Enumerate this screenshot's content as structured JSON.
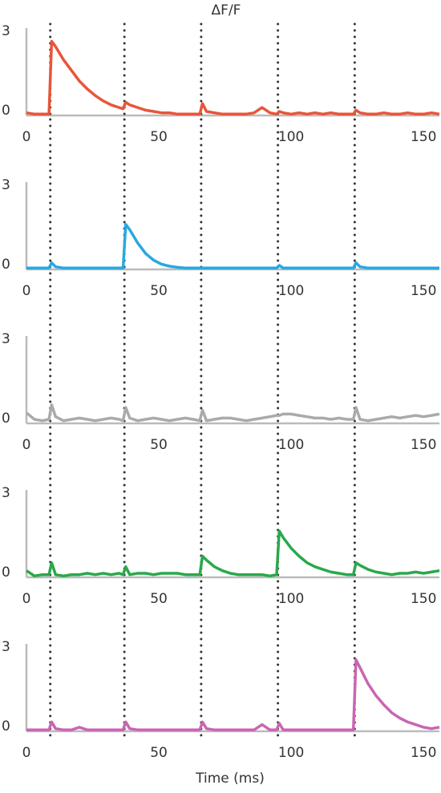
{
  "chart_data": [
    {
      "type": "line",
      "title": "ΔF/F",
      "x": [
        0,
        3,
        6,
        8.5,
        9.5,
        11,
        14,
        17,
        20,
        23,
        26,
        29,
        32,
        35,
        36.5,
        37.5,
        39,
        42,
        45,
        48,
        51,
        54,
        57,
        60,
        63,
        65.5,
        66.5,
        68,
        71,
        74,
        77,
        80,
        83,
        86,
        89,
        92,
        94.5,
        95.5,
        97,
        100,
        103,
        106,
        109,
        112,
        115,
        118,
        121,
        123.5,
        124.5,
        126,
        129,
        132,
        135,
        138,
        141,
        144,
        147,
        150,
        153,
        156
      ],
      "series": [
        {
          "color": "#e8553a",
          "values": [
            0.1,
            0.05,
            0.05,
            0.05,
            2.8,
            2.6,
            2.1,
            1.7,
            1.3,
            1.0,
            0.75,
            0.55,
            0.4,
            0.3,
            0.25,
            0.5,
            0.4,
            0.3,
            0.2,
            0.15,
            0.1,
            0.1,
            0.05,
            0.05,
            0.05,
            0.05,
            0.45,
            0.15,
            0.1,
            0.05,
            0.05,
            0.05,
            0.05,
            0.1,
            0.3,
            0.1,
            0.05,
            0.15,
            0.1,
            0.05,
            0.1,
            0.05,
            0.1,
            0.05,
            0.1,
            0.05,
            0.05,
            0.05,
            0.2,
            0.1,
            0.05,
            0.05,
            0.1,
            0.05,
            0.05,
            0.1,
            0.05,
            0.05,
            0.1,
            0.05
          ]
        }
      ],
      "xlim": [
        0,
        156
      ],
      "xticks": [
        0,
        50,
        100,
        150
      ],
      "ylim": [
        0,
        3.3
      ],
      "yticks": [
        0,
        3
      ],
      "vlines": [
        9,
        37,
        66,
        95,
        124
      ]
    },
    {
      "type": "line",
      "x": [
        0,
        3,
        6,
        8.5,
        9.5,
        11,
        14,
        17,
        20,
        23,
        26,
        29,
        32,
        35,
        36.5,
        37.5,
        39,
        42,
        45,
        48,
        51,
        54,
        57,
        60,
        63,
        65.5,
        66.5,
        68,
        71,
        74,
        77,
        80,
        83,
        86,
        89,
        92,
        94.5,
        95.5,
        97,
        100,
        103,
        106,
        109,
        112,
        115,
        118,
        121,
        123.5,
        124.5,
        126,
        129,
        132,
        135,
        138,
        141,
        144,
        147,
        150,
        153,
        156
      ],
      "series": [
        {
          "color": "#29a8e0",
          "values": [
            0.05,
            0.05,
            0.05,
            0.05,
            0.25,
            0.1,
            0.05,
            0.05,
            0.05,
            0.05,
            0.05,
            0.05,
            0.05,
            0.05,
            0.05,
            1.7,
            1.5,
            1.0,
            0.6,
            0.35,
            0.2,
            0.12,
            0.08,
            0.05,
            0.05,
            0.05,
            0.05,
            0.05,
            0.05,
            0.05,
            0.05,
            0.05,
            0.05,
            0.05,
            0.05,
            0.05,
            0.05,
            0.15,
            0.05,
            0.05,
            0.05,
            0.05,
            0.05,
            0.05,
            0.05,
            0.05,
            0.05,
            0.05,
            0.25,
            0.1,
            0.05,
            0.05,
            0.05,
            0.05,
            0.05,
            0.05,
            0.05,
            0.05,
            0.05,
            0.05
          ]
        }
      ],
      "xlim": [
        0,
        156
      ],
      "xticks": [
        0,
        50,
        100,
        150
      ],
      "ylim": [
        0,
        3.3
      ],
      "yticks": [
        0,
        3
      ],
      "vlines": [
        9,
        37,
        66,
        95,
        124
      ]
    },
    {
      "type": "line",
      "x": [
        0,
        3,
        6,
        8.5,
        9.5,
        11,
        14,
        17,
        20,
        23,
        26,
        29,
        32,
        35,
        36.5,
        37.5,
        39,
        42,
        45,
        48,
        51,
        54,
        57,
        60,
        63,
        65.5,
        66.5,
        68,
        71,
        74,
        77,
        80,
        83,
        86,
        89,
        92,
        94.5,
        95.5,
        97,
        100,
        103,
        106,
        109,
        112,
        115,
        118,
        121,
        123.5,
        124.5,
        126,
        129,
        132,
        135,
        138,
        141,
        144,
        147,
        150,
        153,
        156
      ],
      "series": [
        {
          "color": "#aaaaaa",
          "values": [
            0.4,
            0.15,
            0.1,
            0.15,
            0.7,
            0.25,
            0.1,
            0.15,
            0.2,
            0.15,
            0.1,
            0.15,
            0.2,
            0.15,
            0.1,
            0.6,
            0.2,
            0.1,
            0.15,
            0.2,
            0.15,
            0.1,
            0.15,
            0.2,
            0.15,
            0.1,
            0.5,
            0.1,
            0.15,
            0.2,
            0.2,
            0.15,
            0.1,
            0.15,
            0.2,
            0.25,
            0.3,
            0.3,
            0.35,
            0.35,
            0.3,
            0.25,
            0.2,
            0.2,
            0.15,
            0.2,
            0.15,
            0.15,
            0.6,
            0.15,
            0.1,
            0.15,
            0.2,
            0.25,
            0.2,
            0.25,
            0.3,
            0.25,
            0.3,
            0.35
          ]
        }
      ],
      "xlim": [
        0,
        156
      ],
      "xticks": [
        0,
        50,
        100,
        150
      ],
      "ylim": [
        0,
        3.3
      ],
      "yticks": [
        0,
        3
      ],
      "vlines": [
        9,
        37,
        66,
        95,
        124
      ]
    },
    {
      "type": "line",
      "x": [
        0,
        3,
        6,
        8.5,
        9.5,
        11,
        14,
        17,
        20,
        23,
        26,
        29,
        32,
        35,
        36.5,
        37.5,
        39,
        42,
        45,
        48,
        51,
        54,
        57,
        60,
        63,
        65.5,
        66.5,
        68,
        71,
        74,
        77,
        80,
        83,
        86,
        89,
        92,
        94.5,
        95.5,
        97,
        100,
        103,
        106,
        109,
        112,
        115,
        118,
        121,
        123.5,
        124.5,
        126,
        129,
        132,
        135,
        138,
        141,
        144,
        147,
        150,
        153,
        156
      ],
      "series": [
        {
          "color": "#2aa84a",
          "values": [
            0.25,
            0.05,
            0.1,
            0.1,
            0.55,
            0.1,
            0.05,
            0.1,
            0.1,
            0.15,
            0.1,
            0.15,
            0.1,
            0.15,
            0.1,
            0.4,
            0.1,
            0.15,
            0.15,
            0.1,
            0.15,
            0.15,
            0.15,
            0.1,
            0.1,
            0.1,
            0.8,
            0.65,
            0.4,
            0.25,
            0.15,
            0.1,
            0.1,
            0.1,
            0.1,
            0.05,
            0.1,
            1.75,
            1.5,
            1.1,
            0.8,
            0.55,
            0.4,
            0.3,
            0.2,
            0.15,
            0.1,
            0.1,
            0.55,
            0.45,
            0.3,
            0.2,
            0.15,
            0.1,
            0.15,
            0.15,
            0.2,
            0.15,
            0.2,
            0.25
          ]
        }
      ],
      "xlim": [
        0,
        156
      ],
      "xticks": [
        0,
        50,
        100,
        150
      ],
      "ylim": [
        0,
        3.3
      ],
      "yticks": [
        0,
        3
      ],
      "vlines": [
        9,
        37,
        66,
        95,
        124
      ]
    },
    {
      "type": "line",
      "x_label": "Time (ms)",
      "x": [
        0,
        3,
        6,
        8.5,
        9.5,
        11,
        14,
        17,
        20,
        23,
        26,
        29,
        32,
        35,
        36.5,
        37.5,
        39,
        42,
        45,
        48,
        51,
        54,
        57,
        60,
        63,
        65.5,
        66.5,
        68,
        71,
        74,
        77,
        80,
        83,
        86,
        89,
        92,
        94.5,
        95.5,
        97,
        100,
        103,
        106,
        109,
        112,
        115,
        118,
        121,
        123.5,
        124.5,
        126,
        129,
        132,
        135,
        138,
        141,
        144,
        147,
        150,
        153,
        156
      ],
      "series": [
        {
          "color": "#c966b3",
          "values": [
            0.05,
            0.05,
            0.05,
            0.05,
            0.35,
            0.1,
            0.05,
            0.05,
            0.15,
            0.05,
            0.05,
            0.05,
            0.05,
            0.05,
            0.05,
            0.35,
            0.1,
            0.05,
            0.05,
            0.05,
            0.05,
            0.05,
            0.05,
            0.05,
            0.05,
            0.05,
            0.35,
            0.1,
            0.05,
            0.05,
            0.05,
            0.05,
            0.05,
            0.05,
            0.25,
            0.05,
            0.05,
            0.3,
            0.05,
            0.05,
            0.05,
            0.05,
            0.05,
            0.05,
            0.05,
            0.05,
            0.05,
            0.05,
            2.7,
            2.4,
            1.8,
            1.35,
            1.0,
            0.7,
            0.5,
            0.35,
            0.25,
            0.15,
            0.1,
            0.15
          ]
        }
      ],
      "xlim": [
        0,
        156
      ],
      "xticks": [
        0,
        50,
        100,
        150
      ],
      "ylim": [
        0,
        3.3
      ],
      "yticks": [
        0,
        3
      ],
      "vlines": [
        9,
        37,
        66,
        95,
        124
      ]
    }
  ]
}
